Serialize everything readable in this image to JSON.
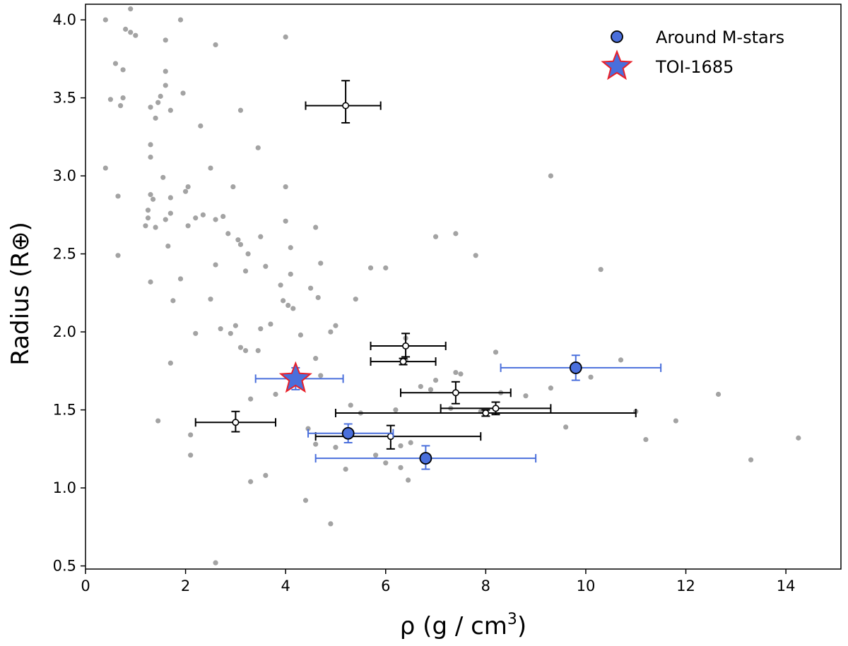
{
  "chart_data": {
    "type": "scatter",
    "title": "",
    "xlabel": "ρ (g / cm",
    "xlabel_sup": "3",
    "xlabel_close": ")",
    "ylabel": "Radius (R⊕)",
    "xlim": [
      0,
      15.1
    ],
    "ylim": [
      0.48,
      4.1
    ],
    "x_ticks": [
      0,
      2,
      4,
      6,
      8,
      10,
      12,
      14
    ],
    "x_tick_labels": [
      "0",
      "2",
      "4",
      "6",
      "8",
      "10",
      "12",
      "14"
    ],
    "y_ticks": [
      0.5,
      1.0,
      1.5,
      2.0,
      2.5,
      3.0,
      3.5,
      4.0
    ],
    "y_tick_labels": [
      "0.5",
      "1.0",
      "1.5",
      "2.0",
      "2.5",
      "3.0",
      "3.5",
      "4.0"
    ],
    "legend_position": "top-right",
    "legend": [
      {
        "label": "Around M-stars",
        "marker": "circle",
        "color": "#4a6fdc"
      },
      {
        "label": "TOI-1685",
        "marker": "star",
        "color": "#4a6fdc"
      }
    ],
    "colors": {
      "background_points": "#a3a3a3",
      "m_star": "#4a6fdc",
      "m_star_err": "#4a6fdc",
      "other_err": "#000000",
      "star_edge": "#e8202a"
    },
    "series": [
      {
        "name": "Known planets",
        "style": "background",
        "points": [
          [
            0.4,
            4.0
          ],
          [
            0.9,
            4.07
          ],
          [
            0.8,
            3.94
          ],
          [
            0.9,
            3.92
          ],
          [
            1.0,
            3.9
          ],
          [
            1.9,
            4.0
          ],
          [
            0.6,
            3.72
          ],
          [
            0.75,
            3.68
          ],
          [
            1.6,
            3.87
          ],
          [
            1.6,
            3.67
          ],
          [
            2.6,
            3.84
          ],
          [
            4.0,
            3.89
          ],
          [
            0.5,
            3.49
          ],
          [
            0.7,
            3.45
          ],
          [
            0.75,
            3.5
          ],
          [
            1.3,
            3.44
          ],
          [
            1.4,
            3.37
          ],
          [
            1.45,
            3.47
          ],
          [
            1.5,
            3.51
          ],
          [
            1.6,
            3.58
          ],
          [
            1.7,
            3.42
          ],
          [
            1.95,
            3.53
          ],
          [
            3.1,
            3.42
          ],
          [
            0.4,
            3.05
          ],
          [
            0.65,
            2.87
          ],
          [
            1.3,
            3.2
          ],
          [
            1.3,
            3.12
          ],
          [
            1.3,
            2.88
          ],
          [
            2.3,
            3.32
          ],
          [
            1.35,
            2.85
          ],
          [
            1.55,
            2.99
          ],
          [
            1.7,
            2.86
          ],
          [
            2.0,
            2.9
          ],
          [
            2.05,
            2.93
          ],
          [
            2.5,
            3.05
          ],
          [
            3.45,
            3.18
          ],
          [
            1.2,
            2.68
          ],
          [
            1.25,
            2.73
          ],
          [
            1.25,
            2.78
          ],
          [
            1.4,
            2.67
          ],
          [
            1.6,
            2.72
          ],
          [
            1.7,
            2.76
          ],
          [
            2.05,
            2.68
          ],
          [
            2.2,
            2.73
          ],
          [
            2.35,
            2.75
          ],
          [
            2.6,
            2.72
          ],
          [
            2.75,
            2.74
          ],
          [
            2.95,
            2.93
          ],
          [
            4.0,
            2.93
          ],
          [
            0.65,
            2.49
          ],
          [
            1.3,
            2.32
          ],
          [
            1.65,
            2.55
          ],
          [
            1.75,
            2.2
          ],
          [
            1.9,
            2.34
          ],
          [
            2.5,
            2.21
          ],
          [
            2.6,
            2.43
          ],
          [
            2.85,
            2.63
          ],
          [
            3.05,
            2.59
          ],
          [
            3.1,
            2.56
          ],
          [
            3.2,
            2.39
          ],
          [
            3.25,
            2.5
          ],
          [
            3.5,
            2.61
          ],
          [
            3.6,
            2.42
          ],
          [
            3.7,
            2.05
          ],
          [
            3.9,
            2.3
          ],
          [
            3.95,
            2.2
          ],
          [
            4.0,
            2.71
          ],
          [
            4.05,
            2.17
          ],
          [
            4.1,
            2.54
          ],
          [
            4.1,
            2.37
          ],
          [
            4.15,
            2.15
          ],
          [
            4.5,
            2.28
          ],
          [
            4.6,
            2.67
          ],
          [
            4.65,
            2.22
          ],
          [
            4.7,
            2.44
          ],
          [
            5.0,
            2.04
          ],
          [
            5.4,
            2.21
          ],
          [
            5.7,
            2.41
          ],
          [
            6.0,
            2.41
          ],
          [
            7.0,
            2.61
          ],
          [
            7.4,
            2.63
          ],
          [
            7.8,
            2.49
          ],
          [
            9.3,
            3.0
          ],
          [
            10.3,
            2.4
          ],
          [
            2.2,
            1.99
          ],
          [
            2.7,
            2.02
          ],
          [
            2.9,
            1.99
          ],
          [
            3.0,
            2.04
          ],
          [
            3.1,
            1.9
          ],
          [
            3.2,
            1.88
          ],
          [
            3.5,
            2.02
          ],
          [
            3.45,
            1.88
          ],
          [
            4.3,
            1.98
          ],
          [
            4.7,
            1.72
          ],
          [
            4.9,
            2.0
          ],
          [
            1.7,
            1.8
          ],
          [
            3.3,
            1.57
          ],
          [
            3.8,
            1.6
          ],
          [
            4.3,
            1.72
          ],
          [
            4.6,
            1.83
          ],
          [
            1.45,
            1.43
          ],
          [
            2.1,
            1.34
          ],
          [
            2.1,
            1.21
          ],
          [
            3.3,
            1.04
          ],
          [
            3.6,
            1.08
          ],
          [
            4.4,
            0.92
          ],
          [
            4.45,
            1.38
          ],
          [
            4.6,
            1.28
          ],
          [
            4.9,
            0.77
          ],
          [
            5.0,
            1.26
          ],
          [
            5.2,
            1.12
          ],
          [
            5.3,
            1.53
          ],
          [
            5.5,
            1.48
          ],
          [
            5.8,
            1.21
          ],
          [
            6.0,
            1.16
          ],
          [
            6.2,
            1.5
          ],
          [
            6.3,
            1.27
          ],
          [
            6.3,
            1.13
          ],
          [
            6.45,
            1.05
          ],
          [
            6.5,
            1.29
          ],
          [
            6.7,
            1.65
          ],
          [
            6.9,
            1.63
          ],
          [
            7.0,
            1.69
          ],
          [
            7.3,
            1.51
          ],
          [
            7.4,
            1.74
          ],
          [
            7.5,
            1.73
          ],
          [
            7.9,
            1.49
          ],
          [
            8.2,
            1.87
          ],
          [
            8.3,
            1.61
          ],
          [
            8.8,
            1.59
          ],
          [
            9.3,
            1.64
          ],
          [
            9.6,
            1.39
          ],
          [
            10.1,
            1.71
          ],
          [
            10.7,
            1.82
          ],
          [
            11.0,
            1.49
          ],
          [
            11.2,
            1.31
          ],
          [
            11.8,
            1.43
          ],
          [
            12.65,
            1.6
          ],
          [
            13.3,
            1.18
          ],
          [
            14.25,
            1.32
          ],
          [
            2.6,
            0.52
          ],
          [
            6.4,
            1.96
          ],
          [
            6.4,
            1.82
          ]
        ]
      },
      {
        "name": "Planets with error bars",
        "style": "open",
        "points": [
          {
            "x": 5.2,
            "y": 3.45,
            "xerr": [
              0.8,
              0.7
            ],
            "yerr": [
              0.11,
              0.16
            ]
          },
          {
            "x": 6.4,
            "y": 1.91,
            "xerr": [
              0.7,
              0.8
            ],
            "yerr": [
              0.07,
              0.08
            ]
          },
          {
            "x": 6.35,
            "y": 1.81,
            "xerr": [
              0.65,
              0.65
            ],
            "yerr": [
              0.02,
              0.02
            ]
          },
          {
            "x": 7.4,
            "y": 1.61,
            "xerr": [
              1.1,
              1.1
            ],
            "yerr": [
              0.07,
              0.07
            ]
          },
          {
            "x": 8.2,
            "y": 1.51,
            "xerr": [
              1.1,
              1.1
            ],
            "yerr": [
              0.04,
              0.04
            ]
          },
          {
            "x": 8.0,
            "y": 1.48,
            "xerr": [
              3.0,
              3.0
            ],
            "yerr": [
              0.02,
              0.02
            ]
          },
          {
            "x": 3.0,
            "y": 1.42,
            "xerr": [
              0.8,
              0.8
            ],
            "yerr": [
              0.06,
              0.07
            ]
          },
          {
            "x": 6.1,
            "y": 1.33,
            "xerr": [
              1.5,
              1.8
            ],
            "yerr": [
              0.08,
              0.07
            ]
          }
        ]
      },
      {
        "name": "Around M-stars",
        "style": "m-star",
        "points": [
          {
            "x": 9.8,
            "y": 1.77,
            "xerr": [
              1.5,
              1.7
            ],
            "yerr": [
              0.08,
              0.08
            ]
          },
          {
            "x": 5.25,
            "y": 1.35,
            "xerr": [
              0.8,
              0.9
            ],
            "yerr": [
              0.06,
              0.06
            ]
          },
          {
            "x": 6.8,
            "y": 1.19,
            "xerr": [
              2.2,
              2.2
            ],
            "yerr": [
              0.07,
              0.08
            ]
          }
        ]
      },
      {
        "name": "TOI-1685",
        "style": "star",
        "points": [
          {
            "x": 4.2,
            "y": 1.7,
            "xerr": [
              0.8,
              0.95
            ],
            "yerr": [
              0.07,
              0.07
            ]
          }
        ]
      }
    ]
  }
}
